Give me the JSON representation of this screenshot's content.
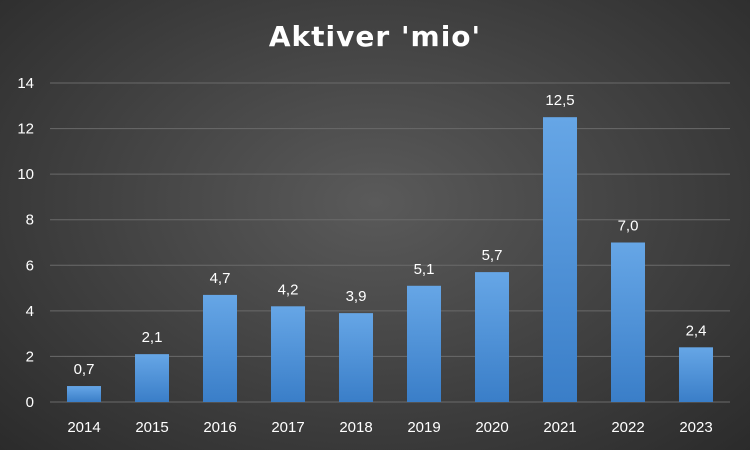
{
  "chart_data": {
    "type": "bar",
    "title": "Aktiver 'mio'",
    "xlabel": "",
    "ylabel": "",
    "categories": [
      "2014",
      "2015",
      "2016",
      "2017",
      "2018",
      "2019",
      "2020",
      "2021",
      "2022",
      "2023"
    ],
    "values": [
      0.7,
      2.1,
      4.7,
      4.2,
      3.9,
      5.1,
      5.7,
      12.5,
      7.0,
      2.4
    ],
    "data_labels": [
      "0,7",
      "2,1",
      "4,7",
      "4,2",
      "3,9",
      "5,1",
      "5,7",
      "12,5",
      "7,0",
      "2,4"
    ],
    "yticks": [
      "0",
      "2",
      "4",
      "6",
      "8",
      "10",
      "12",
      "14"
    ],
    "ylim": [
      0,
      14
    ],
    "grid": true,
    "legend": "none",
    "colors": {
      "bar_top": "#66a6e6",
      "bar_bottom": "#3a7ec8",
      "grid": "#6a6a6a",
      "text": "#ffffff",
      "background_center": "#5a5a5a",
      "background_edge": "#2b2b2b"
    }
  }
}
